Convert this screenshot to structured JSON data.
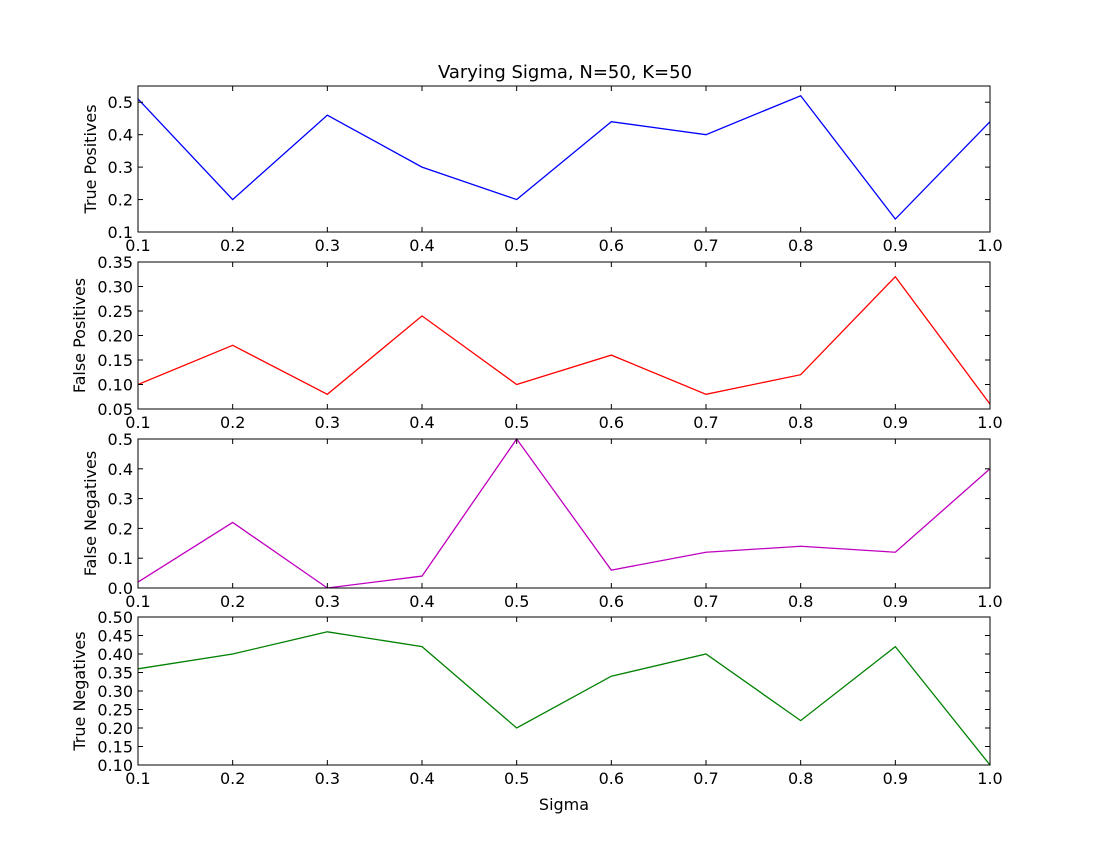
{
  "title": "Varying Sigma, N=50, K=50",
  "chart_data": [
    {
      "type": "line",
      "ylabel": "True Positives",
      "xlabel": "",
      "x": [
        0.1,
        0.2,
        0.3,
        0.4,
        0.5,
        0.6,
        0.7,
        0.8,
        0.9,
        1.0
      ],
      "values": [
        0.51,
        0.2,
        0.46,
        0.3,
        0.2,
        0.44,
        0.4,
        0.52,
        0.14,
        0.44
      ],
      "color": "#0000ff",
      "xlim": [
        0.1,
        1.0
      ],
      "ylim": [
        0.1,
        0.55
      ],
      "xticks": [
        "0.1",
        "0.2",
        "0.3",
        "0.4",
        "0.5",
        "0.6",
        "0.7",
        "0.8",
        "0.9",
        "1.0"
      ],
      "yticks": [
        "0.1",
        "0.2",
        "0.3",
        "0.4",
        "0.5"
      ],
      "grid": false
    },
    {
      "type": "line",
      "ylabel": "False Positives",
      "xlabel": "",
      "x": [
        0.1,
        0.2,
        0.3,
        0.4,
        0.5,
        0.6,
        0.7,
        0.8,
        0.9,
        1.0
      ],
      "values": [
        0.1,
        0.18,
        0.08,
        0.24,
        0.1,
        0.16,
        0.08,
        0.12,
        0.32,
        0.06
      ],
      "color": "#ff0000",
      "xlim": [
        0.1,
        1.0
      ],
      "ylim": [
        0.05,
        0.35
      ],
      "xticks": [
        "0.1",
        "0.2",
        "0.3",
        "0.4",
        "0.5",
        "0.6",
        "0.7",
        "0.8",
        "0.9",
        "1.0"
      ],
      "yticks": [
        "0.05",
        "0.10",
        "0.15",
        "0.20",
        "0.25",
        "0.30",
        "0.35"
      ],
      "grid": false
    },
    {
      "type": "line",
      "ylabel": "False Negatives",
      "xlabel": "",
      "x": [
        0.1,
        0.2,
        0.3,
        0.4,
        0.5,
        0.6,
        0.7,
        0.8,
        0.9,
        1.0
      ],
      "values": [
        0.02,
        0.22,
        0.0,
        0.04,
        0.5,
        0.06,
        0.12,
        0.14,
        0.12,
        0.4
      ],
      "color": "#bf00bf",
      "xlim": [
        0.1,
        1.0
      ],
      "ylim": [
        0.0,
        0.5
      ],
      "xticks": [
        "0.1",
        "0.2",
        "0.3",
        "0.4",
        "0.5",
        "0.6",
        "0.7",
        "0.8",
        "0.9",
        "1.0"
      ],
      "yticks": [
        "0.0",
        "0.1",
        "0.2",
        "0.3",
        "0.4",
        "0.5"
      ],
      "grid": false
    },
    {
      "type": "line",
      "ylabel": "True Negatives",
      "xlabel": "Sigma",
      "x": [
        0.1,
        0.2,
        0.3,
        0.4,
        0.5,
        0.6,
        0.7,
        0.8,
        0.9,
        1.0
      ],
      "values": [
        0.36,
        0.4,
        0.46,
        0.42,
        0.2,
        0.34,
        0.4,
        0.22,
        0.42,
        0.1
      ],
      "color": "#008000",
      "xlim": [
        0.1,
        1.0
      ],
      "ylim": [
        0.1,
        0.5
      ],
      "xticks": [
        "0.1",
        "0.2",
        "0.3",
        "0.4",
        "0.5",
        "0.6",
        "0.7",
        "0.8",
        "0.9",
        "1.0"
      ],
      "yticks": [
        "0.10",
        "0.15",
        "0.20",
        "0.25",
        "0.30",
        "0.35",
        "0.40",
        "0.45",
        "0.50"
      ],
      "grid": false
    }
  ]
}
